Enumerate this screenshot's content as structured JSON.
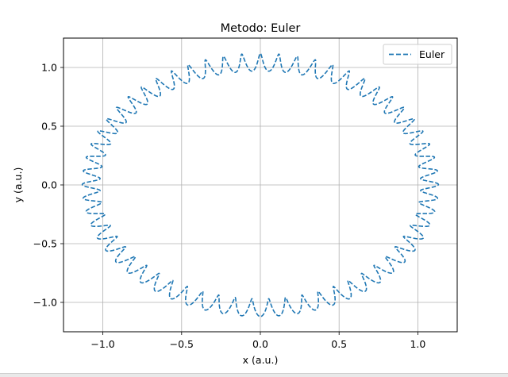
{
  "chart_data": {
    "type": "line",
    "title": "Metodo: Euler",
    "xlabel": "x (a.u.)",
    "ylabel": "y (a.u.)",
    "xlim": [
      -1.25,
      1.25
    ],
    "ylim": [
      -1.25,
      1.25
    ],
    "xticks": [
      -1.0,
      -0.5,
      0.0,
      0.5,
      1.0
    ],
    "yticks": [
      -1.0,
      -0.5,
      0.0,
      0.5,
      1.0
    ],
    "xtick_labels": [
      "−1.0",
      "−0.5",
      "0.0",
      "0.5",
      "1.0"
    ],
    "ytick_labels": [
      "−1.0",
      "−0.5",
      "0.0",
      "0.5",
      "1.0"
    ],
    "grid": true,
    "legend_position": "upper right",
    "series": [
      {
        "name": "Euler",
        "color": "#1f77b4",
        "linestyle": "dashed",
        "description_shape": "ellipse band",
        "center": [
          0.0,
          0.0
        ],
        "x_radius_range": [
          1.02,
          1.13
        ],
        "y_radius_range": [
          0.97,
          1.12
        ],
        "turns": 60
      }
    ]
  }
}
